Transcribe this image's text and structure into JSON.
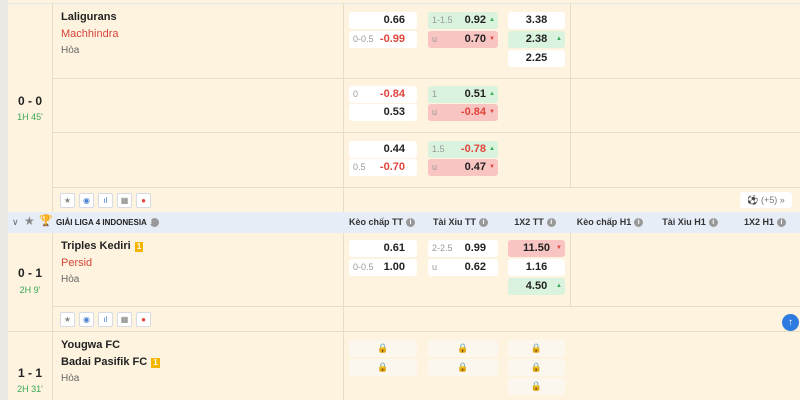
{
  "header": {
    "league": "GIẢI LIGA 4 INDONESIA",
    "columns": [
      "Kèo chấp TT",
      "Tài Xỉu TT",
      "1X2 TT",
      "Kèo chấp H1",
      "Tài Xỉu H1",
      "1X2 H1"
    ]
  },
  "more_count": "(+5)",
  "matches": [
    {
      "score": "0 - 0",
      "time": "1H 45'",
      "home": "Laligurans",
      "away": "Machhindra",
      "draw": "Hòa",
      "lines": [
        {
          "hc": {
            "label": "0-0.5",
            "home": "0.66",
            "away": "-0.99"
          },
          "ou": {
            "label": "1-1.5",
            "over": "0.92",
            "under_label": "u",
            "under": "0.70"
          },
          "x12": [
            "3.38",
            "2.38",
            "2.25"
          ]
        },
        {
          "hc": {
            "label": "0",
            "home": "-0.84",
            "away": "0.53"
          },
          "ou": {
            "label": "1",
            "over": "0.51",
            "under_label": "u",
            "under": "-0.84"
          }
        },
        {
          "hc": {
            "label": "0.5",
            "home": "0.44",
            "away": "-0.70"
          },
          "ou": {
            "label": "1.5",
            "over": "-0.78",
            "under_label": "u",
            "under": "0.47"
          }
        }
      ]
    },
    {
      "score": "0 - 1",
      "time": "2H 9'",
      "home": "Triples Kediri",
      "home_badge": "1",
      "away": "Persid",
      "draw": "Hòa",
      "lines": [
        {
          "hc": {
            "label": "0-0.5",
            "home": "0.61",
            "away": "1.00"
          },
          "ou": {
            "label": "2-2.5",
            "over": "0.99",
            "under_label": "u",
            "under": "0.62"
          },
          "x12": [
            "11.50",
            "1.16",
            "4.50"
          ]
        }
      ]
    },
    {
      "score": "1 - 1",
      "time": "2H 31'",
      "home": "Yougwa FC",
      "away": "Badai Pasifik FC",
      "away_badge": "1",
      "draw": "Hòa",
      "locked": true
    }
  ],
  "colors": {
    "background": "#fdf3df",
    "odds_up": "#daf3de",
    "odds_down": "#f8c5c2",
    "live_time": "#3aa757",
    "away_team": "#d9443b"
  }
}
